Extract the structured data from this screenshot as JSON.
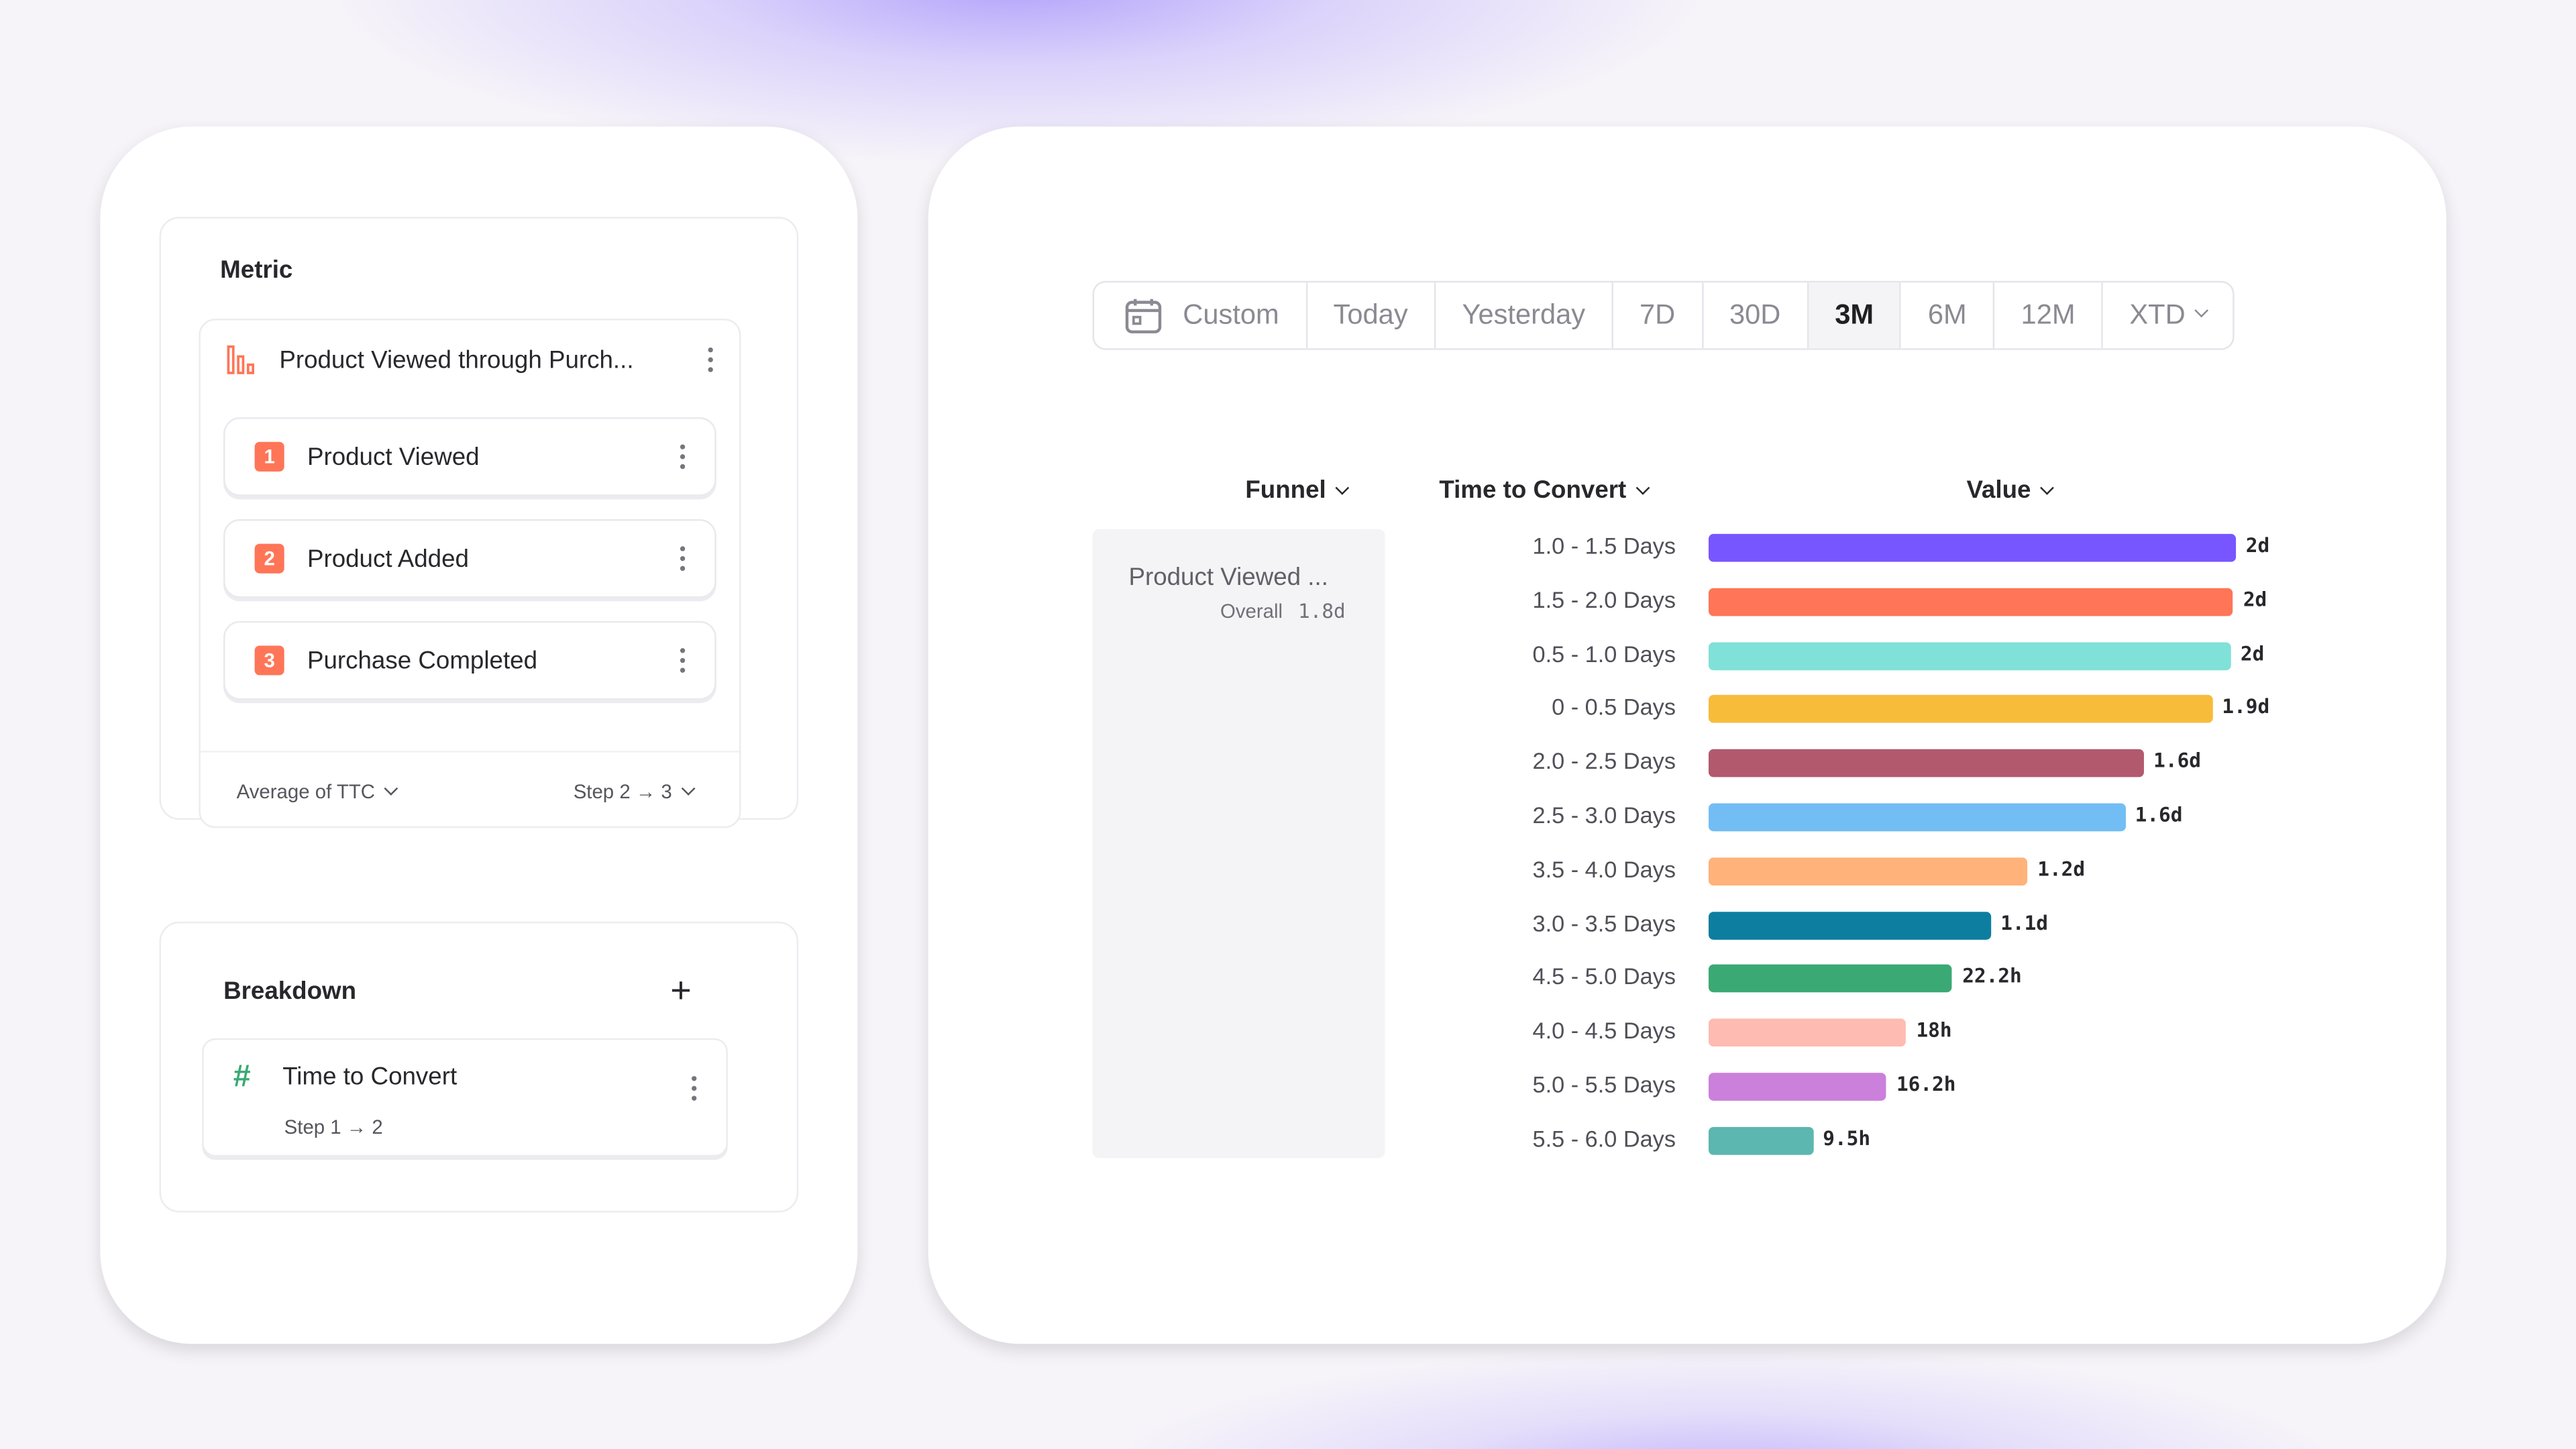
{
  "metric": {
    "title": "Metric",
    "funnel_name": "Product Viewed through Purch...",
    "steps": [
      {
        "number": "1",
        "label": "Product Viewed"
      },
      {
        "number": "2",
        "label": "Product Added"
      },
      {
        "number": "3",
        "label": "Purchase Completed"
      }
    ],
    "aggregation": "Average of TTC",
    "step_range": "Step 2 → 3",
    "accent_color": "#ff7557"
  },
  "breakdown": {
    "title": "Breakdown",
    "add_icon": "plus-icon",
    "item_icon": "hash-icon",
    "item_label": "Time to Convert",
    "item_sub": "Step 1 → 2"
  },
  "date_range": {
    "options": [
      "Custom",
      "Today",
      "Yesterday",
      "7D",
      "30D",
      "3M",
      "6M",
      "12M",
      "XTD"
    ],
    "selected": "3M",
    "icon": "calendar-icon"
  },
  "table": {
    "columns": [
      "Funnel",
      "Time to Convert",
      "Value"
    ],
    "funnel_name": "Product Viewed ...",
    "overall_label": "Overall",
    "overall_value": "1.8d"
  },
  "chart_data": {
    "type": "bar",
    "orientation": "horizontal",
    "unit": "days",
    "categories": [
      "1.0 - 1.5 Days",
      "1.5 - 2.0 Days",
      "0.5 - 1.0 Days",
      "0 - 0.5 Days",
      "2.0 - 2.5 Days",
      "2.5 - 3.0 Days",
      "3.5 - 4.0 Days",
      "3.0 - 3.5 Days",
      "4.5 - 5.0 Days",
      "4.0 - 4.5 Days",
      "5.0 - 5.5 Days",
      "5.5 - 6.0 Days"
    ],
    "values": [
      2.0,
      1.99,
      1.98,
      1.91,
      1.65,
      1.58,
      1.21,
      1.07,
      0.925,
      0.75,
      0.675,
      0.396
    ],
    "data_labels": [
      "2d",
      "2d",
      "2d",
      "1.9d",
      "1.6d",
      "1.6d",
      "1.2d",
      "1.1d",
      "22.2h",
      "18h",
      "16.2h",
      "9.5h"
    ],
    "colors": [
      "#7856ff",
      "#ff7557",
      "#80e1d9",
      "#f8bc3b",
      "#b2596e",
      "#72bef4",
      "#ffb27a",
      "#0d7ea0",
      "#3ba974",
      "#febbb2",
      "#cb80dc",
      "#5bb7af"
    ],
    "grid": false
  }
}
